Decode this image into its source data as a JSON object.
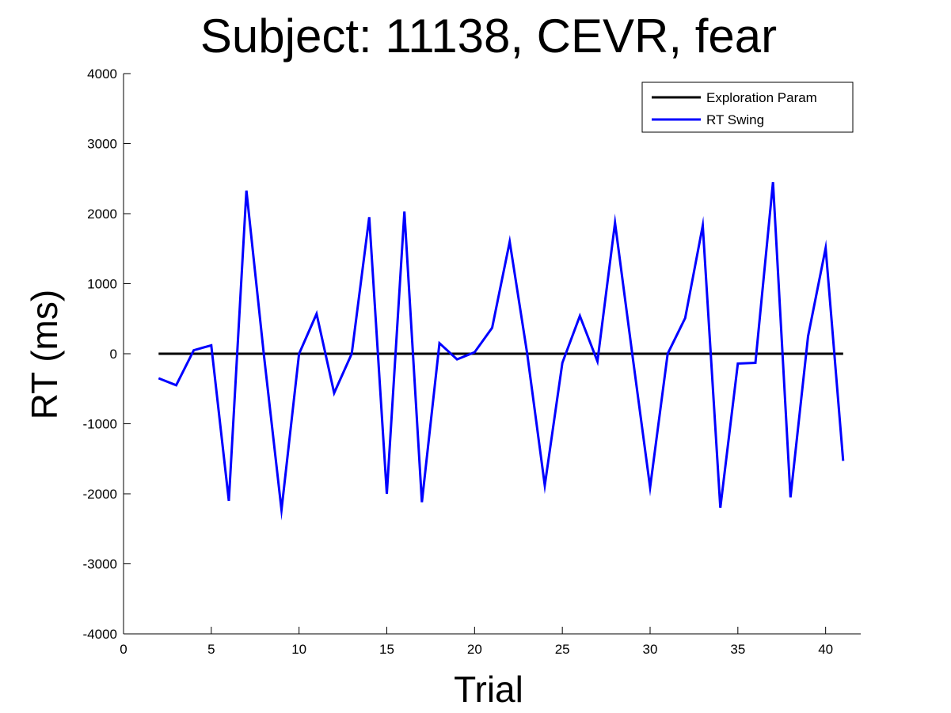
{
  "chart_data": {
    "type": "line",
    "title": "Subject: 11138, CEVR, fear",
    "xlabel": "Trial",
    "ylabel": "RT (ms)",
    "xlim": [
      0,
      42
    ],
    "ylim": [
      -4000,
      4000
    ],
    "xticks": [
      0,
      5,
      10,
      15,
      20,
      25,
      30,
      35,
      40
    ],
    "yticks": [
      -4000,
      -3000,
      -2000,
      -1000,
      0,
      1000,
      2000,
      3000,
      4000
    ],
    "grid": false,
    "legend_position": "top-right",
    "series": [
      {
        "name": "Exploration Param",
        "color": "#000000",
        "x": [
          2,
          41
        ],
        "y": [
          0,
          0
        ]
      },
      {
        "name": "RT Swing",
        "color": "#0000ff",
        "x": [
          2,
          3,
          4,
          5,
          6,
          7,
          8,
          9,
          10,
          11,
          12,
          13,
          14,
          15,
          16,
          17,
          18,
          19,
          20,
          21,
          22,
          23,
          24,
          25,
          26,
          27,
          28,
          29,
          30,
          31,
          32,
          33,
          34,
          35,
          36,
          37,
          38,
          39,
          40,
          41
        ],
        "y": [
          -350,
          -450,
          50,
          120,
          -2100,
          2330,
          -20,
          -2230,
          0,
          570,
          -560,
          0,
          1950,
          -2000,
          2030,
          -2120,
          150,
          -80,
          20,
          370,
          1600,
          0,
          -1880,
          -130,
          540,
          -110,
          1870,
          -30,
          -1910,
          0,
          510,
          1830,
          -2200,
          -140,
          -130,
          2450,
          -2050,
          250,
          1510,
          -1530
        ]
      }
    ]
  }
}
